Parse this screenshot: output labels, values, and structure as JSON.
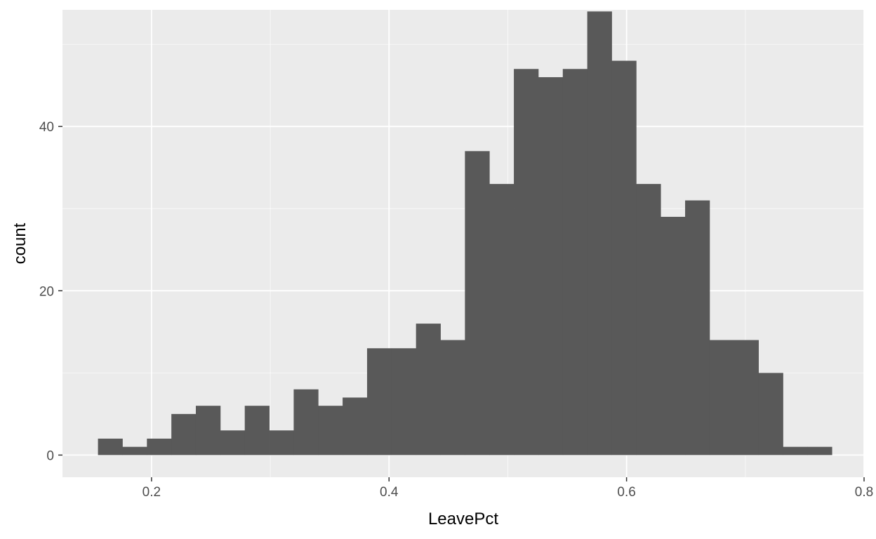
{
  "chart_data": {
    "type": "bar",
    "subtype": "histogram",
    "xlabel": "LeavePct",
    "ylabel": "count",
    "xlim": [
      0.125,
      0.8
    ],
    "ylim": [
      -2.7,
      54.2
    ],
    "x_ticks": [
      0.2,
      0.4,
      0.6,
      0.8
    ],
    "x_tick_labels": [
      "0.2",
      "0.4",
      "0.6",
      "0.8"
    ],
    "y_ticks": [
      0,
      20,
      40
    ],
    "y_tick_labels": [
      "0",
      "20",
      "40"
    ],
    "x_minor_ticks": [
      0.3,
      0.5,
      0.7
    ],
    "y_minor_ticks": [
      10,
      30,
      50
    ],
    "grid": true,
    "legend": "none",
    "bin_start": 0.1549,
    "bin_width": 0.0206,
    "values": [
      2,
      1,
      2,
      5,
      6,
      3,
      6,
      3,
      8,
      6,
      7,
      13,
      13,
      16,
      14,
      37,
      33,
      47,
      46,
      47,
      54,
      48,
      33,
      29,
      31,
      14,
      14,
      10,
      1,
      1
    ],
    "colors": {
      "panel": "#ebebeb",
      "grid_major": "#ffffff",
      "bar": "#595959",
      "tick": "#333333"
    }
  }
}
